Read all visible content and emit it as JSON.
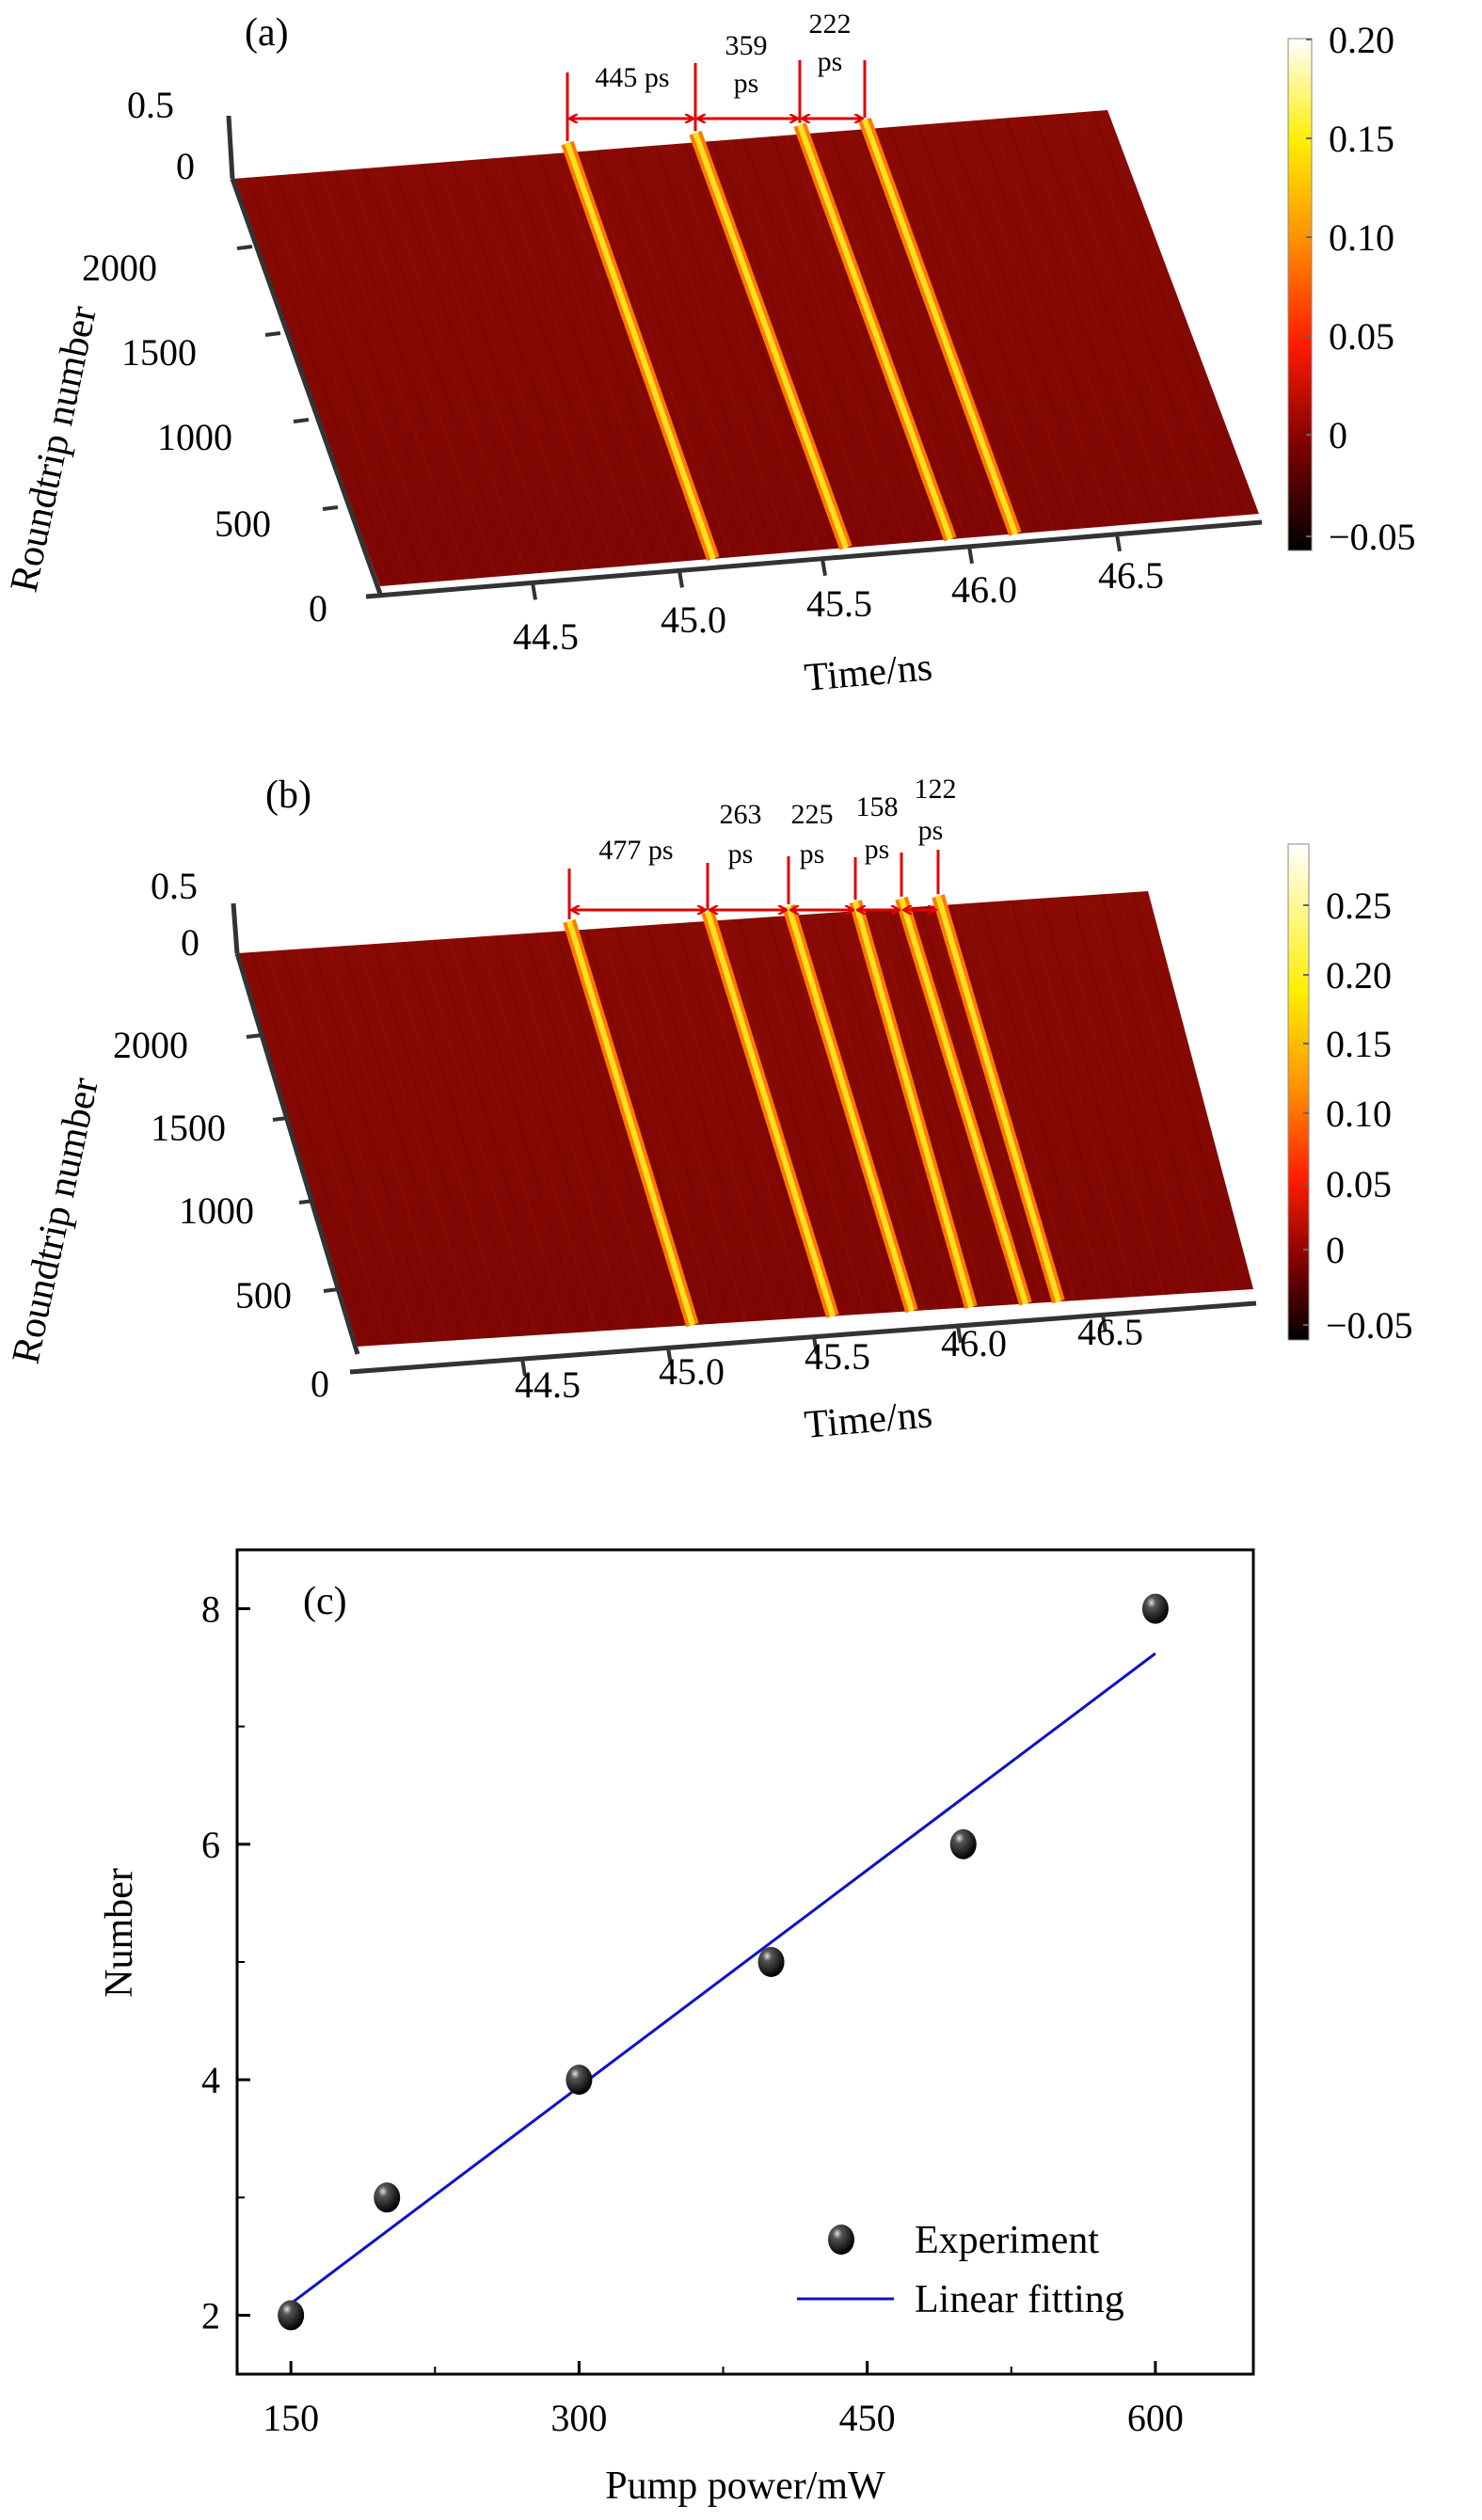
{
  "chart_data": [
    {
      "type": "heatmap",
      "panel_label": "(a)",
      "xlabel": "Time/ns",
      "ylabel": "Roundtrip number",
      "x_ticks": [
        "44.5",
        "45.0",
        "45.5",
        "46.0",
        "46.5"
      ],
      "y_ticks": [
        "0",
        "500",
        "1000",
        "1500",
        "2000"
      ],
      "z_ticks": [
        "0",
        "0.5"
      ],
      "colorbar_ticks": [
        "−0.05",
        "0",
        "0.05",
        "0.10",
        "0.15",
        "0.20"
      ],
      "colorbar_range": [
        -0.05,
        0.2
      ],
      "pulse_count": 4,
      "intervals": [
        {
          "value": "445",
          "unit": "ps"
        },
        {
          "value": "359",
          "unit": "ps"
        },
        {
          "value": "222",
          "unit": "ps"
        }
      ]
    },
    {
      "type": "heatmap",
      "panel_label": "(b)",
      "xlabel": "Time/ns",
      "ylabel": "Roundtrip number",
      "x_ticks": [
        "44.5",
        "45.0",
        "45.5",
        "46.0",
        "46.5"
      ],
      "y_ticks": [
        "0",
        "500",
        "1000",
        "1500",
        "2000"
      ],
      "z_ticks": [
        "0",
        "0.5"
      ],
      "colorbar_ticks": [
        "−0.05",
        "0",
        "0.05",
        "0.10",
        "0.15",
        "0.20",
        "0.25"
      ],
      "colorbar_range": [
        -0.05,
        0.28
      ],
      "pulse_count": 6,
      "intervals": [
        {
          "value": "477",
          "unit": "ps"
        },
        {
          "value": "263",
          "unit": "ps"
        },
        {
          "value": "225",
          "unit": "ps"
        },
        {
          "value": "158",
          "unit": "ps"
        },
        {
          "value": "122",
          "unit": "ps"
        }
      ]
    },
    {
      "type": "scatter",
      "panel_label": "(c)",
      "xlabel": "Pump power/mW",
      "ylabel": "Number",
      "xlim": [
        122,
        651
      ],
      "ylim": [
        1.5,
        8.5
      ],
      "x_ticks": [
        150,
        300,
        450,
        600
      ],
      "y_ticks": [
        2,
        4,
        6,
        8
      ],
      "grid": false,
      "legend_position": "bottom-right",
      "series": [
        {
          "name": "Experiment",
          "kind": "scatter",
          "color": "#000000",
          "x": [
            150,
            200,
            300,
            400,
            500,
            600
          ],
          "y": [
            2,
            3,
            4,
            5,
            6,
            8
          ]
        },
        {
          "name": "Linear fitting",
          "kind": "line",
          "color": "#1010c8",
          "x": [
            150,
            600
          ],
          "y": [
            2.1,
            7.62
          ]
        }
      ]
    }
  ]
}
